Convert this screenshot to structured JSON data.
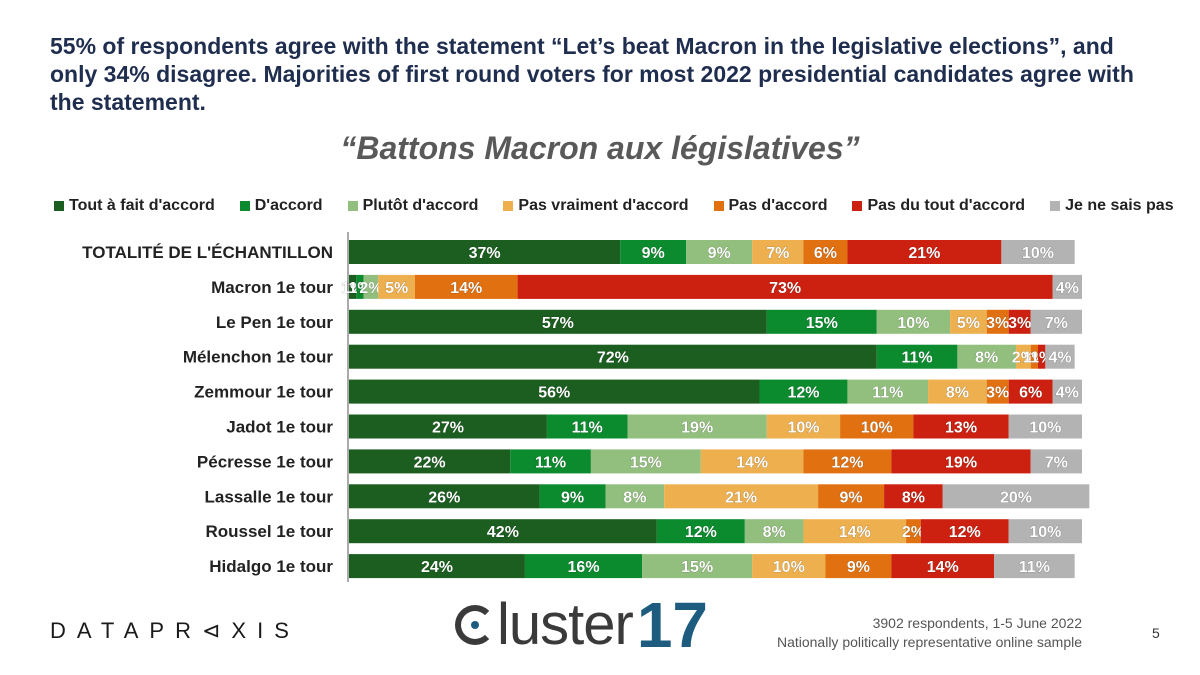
{
  "headline": "55% of respondents agree with the statement “Let’s beat Macron in the legislative elections”, and only 34% disagree. Majorities of first round voters for most 2022 presidential candidates agree with the statement.",
  "chart_data": {
    "type": "bar",
    "orientation": "horizontal",
    "stacked": true,
    "title": "“Battons Macron aux législatives”",
    "categories": [
      "TOTALITÉ DE L'ÉCHANTILLON",
      "Macron 1e tour",
      "Le Pen 1e tour",
      "Mélenchon 1e tour",
      "Zemmour 1e tour",
      "Jadot 1e tour",
      "Pécresse 1e tour",
      "Lassalle 1e tour",
      "Roussel 1e tour",
      "Hidalgo 1e tour"
    ],
    "series": [
      {
        "name": "Tout à fait d'accord",
        "color": "#1b5e20",
        "values": [
          37,
          1,
          57,
          72,
          56,
          27,
          22,
          26,
          42,
          24
        ]
      },
      {
        "name": "D'accord",
        "color": "#0b8a2e",
        "values": [
          9,
          1,
          15,
          11,
          12,
          11,
          11,
          9,
          12,
          16
        ]
      },
      {
        "name": "Plutôt d'accord",
        "color": "#93bf7e",
        "values": [
          9,
          2,
          10,
          8,
          11,
          19,
          15,
          8,
          8,
          15
        ]
      },
      {
        "name": "Pas vraiment d'accord",
        "color": "#eeb04f",
        "values": [
          7,
          5,
          5,
          2,
          8,
          10,
          14,
          21,
          14,
          10
        ]
      },
      {
        "name": "Pas d'accord",
        "color": "#e07010",
        "values": [
          6,
          14,
          3,
          1,
          3,
          10,
          12,
          9,
          2,
          9
        ]
      },
      {
        "name": "Pas du tout d'accord",
        "color": "#cc2010",
        "values": [
          21,
          73,
          3,
          1,
          6,
          13,
          19,
          8,
          12,
          14
        ]
      },
      {
        "name": "Je ne sais pas",
        "color": "#b3b3b3",
        "values": [
          10,
          4,
          7,
          4,
          4,
          10,
          7,
          20,
          10,
          11
        ]
      }
    ],
    "xlim": [
      0,
      100
    ]
  },
  "footer": {
    "brand_left": "DATAPR⊲XIS",
    "brand_center_text": "luster",
    "brand_center_number": "17",
    "source_line1": "3902 respondents, 1-5 June 2022",
    "source_line2": "Nationally politically representative online sample",
    "page_number": "5"
  }
}
